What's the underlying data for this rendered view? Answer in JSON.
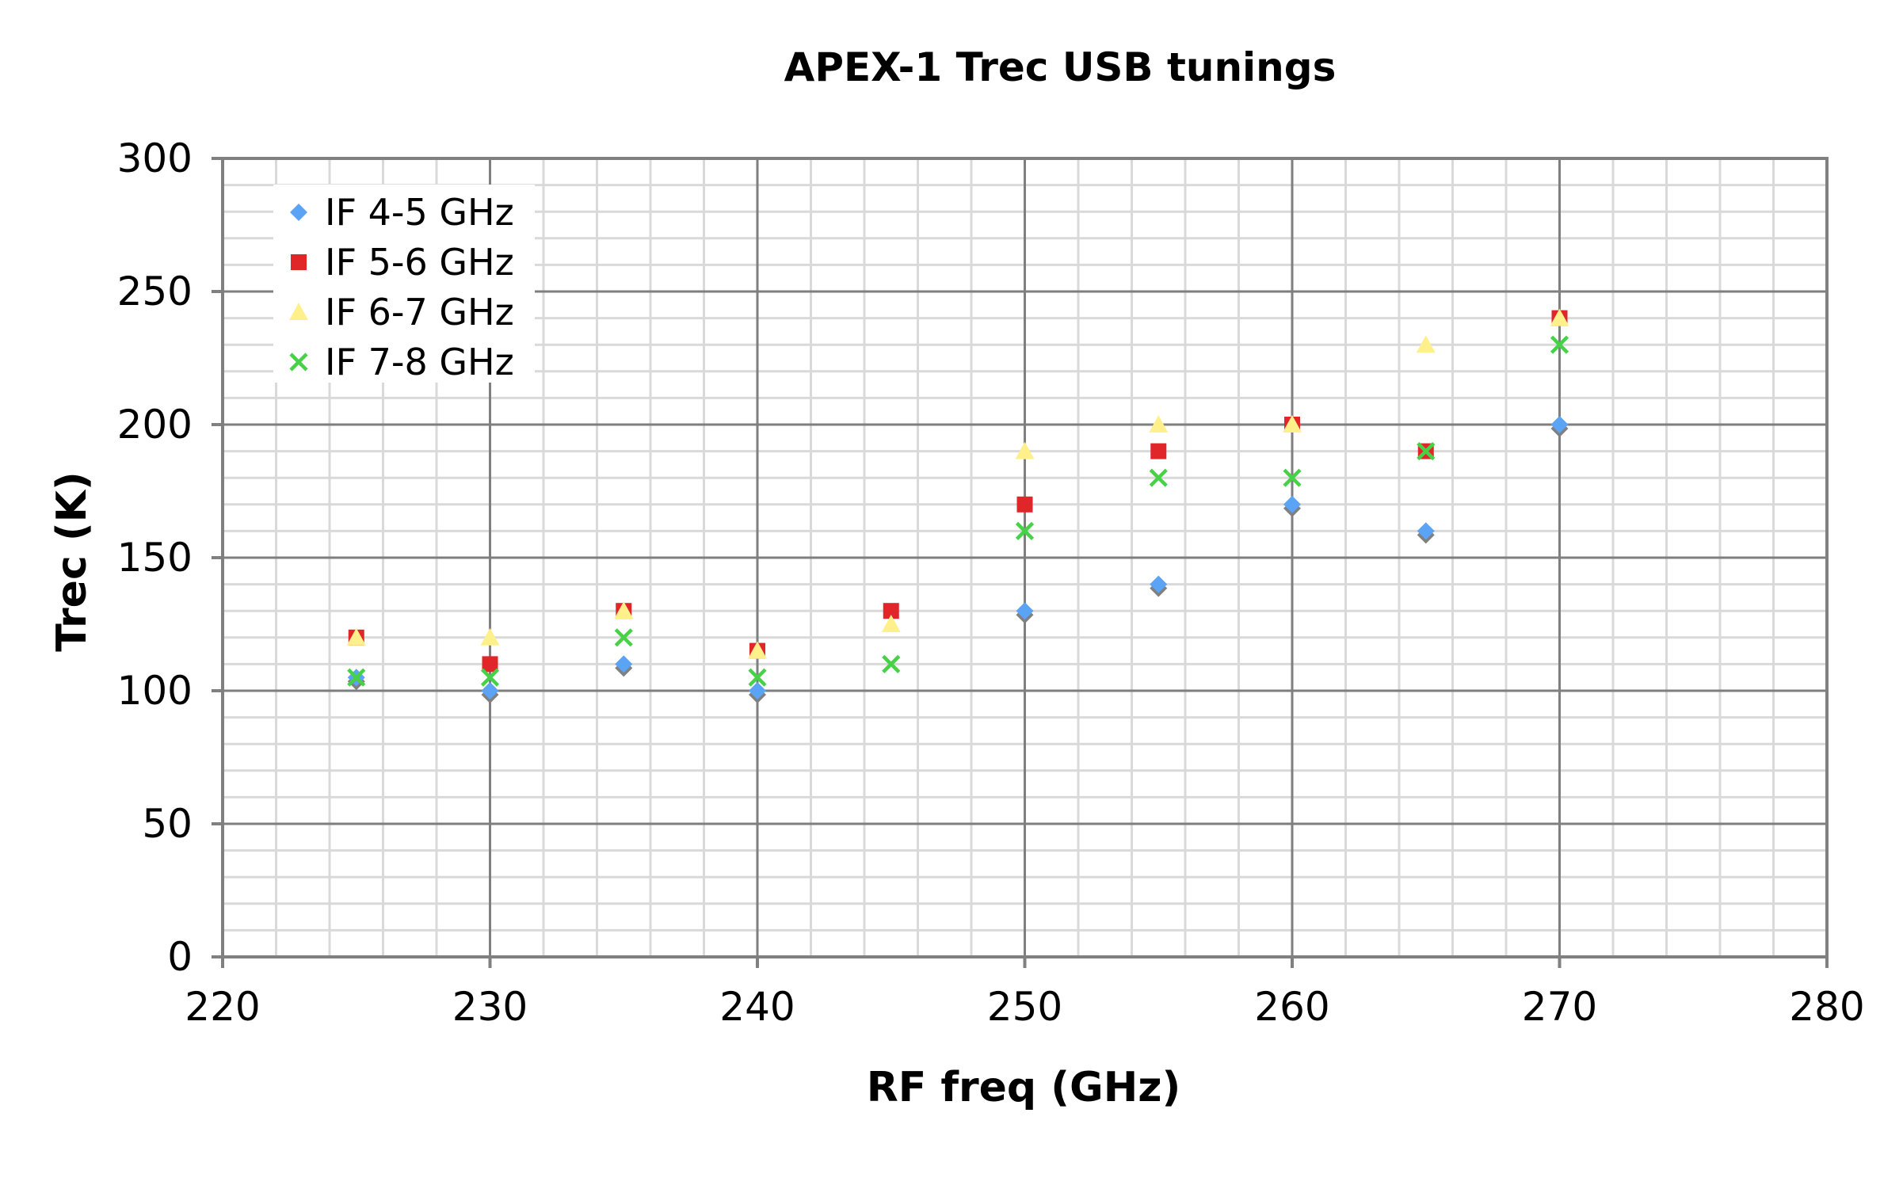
{
  "chart_data": {
    "type": "scatter",
    "title": "APEX-1 Trec USB tunings",
    "xlabel": "RF freq (GHz)",
    "ylabel": "Trec (K)",
    "xlim": [
      220,
      280
    ],
    "ylim": [
      0,
      300
    ],
    "x_ticks": [
      "220",
      "230",
      "240",
      "250",
      "260",
      "270",
      "280"
    ],
    "y_ticks": [
      "0",
      "50",
      "100",
      "150",
      "200",
      "250",
      "300"
    ],
    "grid": "major and minor",
    "legend_position": "top-left",
    "series": [
      {
        "name": "IF 4-5 GHz",
        "marker": "diamond",
        "color": "#5ba3f5",
        "x": [
          225,
          230,
          235,
          240,
          250,
          255,
          260,
          265,
          270
        ],
        "y": [
          105,
          100,
          110,
          100,
          130,
          140,
          170,
          160,
          200
        ]
      },
      {
        "name": "IF 5-6 GHz",
        "marker": "square",
        "color": "#e1262a",
        "x": [
          225,
          230,
          235,
          240,
          245,
          250,
          255,
          260,
          265,
          270
        ],
        "y": [
          120,
          110,
          130,
          115,
          130,
          170,
          190,
          200,
          190,
          240
        ]
      },
      {
        "name": "IF 6-7 GHz",
        "marker": "triangle",
        "color": "#fff08c",
        "x": [
          225,
          230,
          235,
          240,
          245,
          250,
          255,
          260,
          265,
          270
        ],
        "y": [
          120,
          120,
          130,
          115,
          125,
          190,
          200,
          200,
          230,
          240
        ]
      },
      {
        "name": "IF 7-8 GHz",
        "marker": "x",
        "color": "#47d147",
        "x": [
          225,
          230,
          235,
          240,
          245,
          250,
          255,
          260,
          265,
          270
        ],
        "y": [
          105,
          105,
          120,
          105,
          110,
          160,
          180,
          180,
          190,
          230
        ]
      }
    ]
  }
}
